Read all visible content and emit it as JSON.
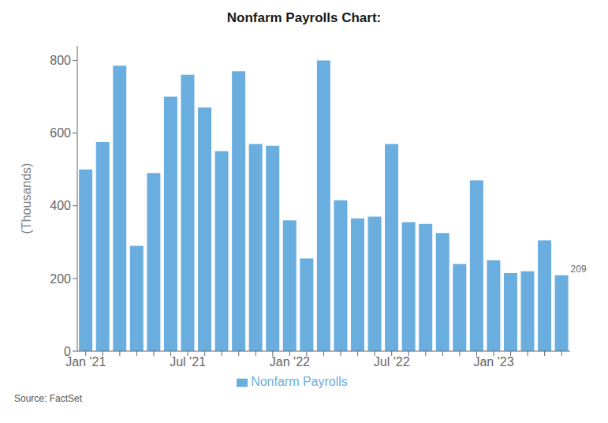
{
  "chart_data": {
    "type": "bar",
    "title": "Nonfarm Payrolls Chart:",
    "ylabel": "(Thousands)",
    "source": "Source: FactSet",
    "categories": [
      "Jan '21",
      null,
      null,
      null,
      null,
      null,
      "Jul '21",
      null,
      null,
      null,
      null,
      null,
      "Jan '22",
      null,
      null,
      null,
      null,
      null,
      "Jul '22",
      null,
      null,
      null,
      null,
      null,
      "Jan '23",
      null,
      null,
      null,
      null
    ],
    "series": [
      {
        "name": "Nonfarm Payrolls",
        "color": "#6aaee0",
        "values": [
          500,
          575,
          785,
          290,
          490,
          700,
          760,
          670,
          550,
          770,
          570,
          565,
          360,
          255,
          800,
          415,
          365,
          370,
          570,
          355,
          350,
          325,
          240,
          470,
          250,
          215,
          220,
          305,
          209
        ]
      }
    ],
    "annotations": [
      {
        "text": "209",
        "index": 28
      }
    ],
    "ylim": [
      0,
      840
    ],
    "yticks": [
      0,
      200,
      400,
      600,
      800
    ],
    "grid": false,
    "legend": "bottom"
  }
}
